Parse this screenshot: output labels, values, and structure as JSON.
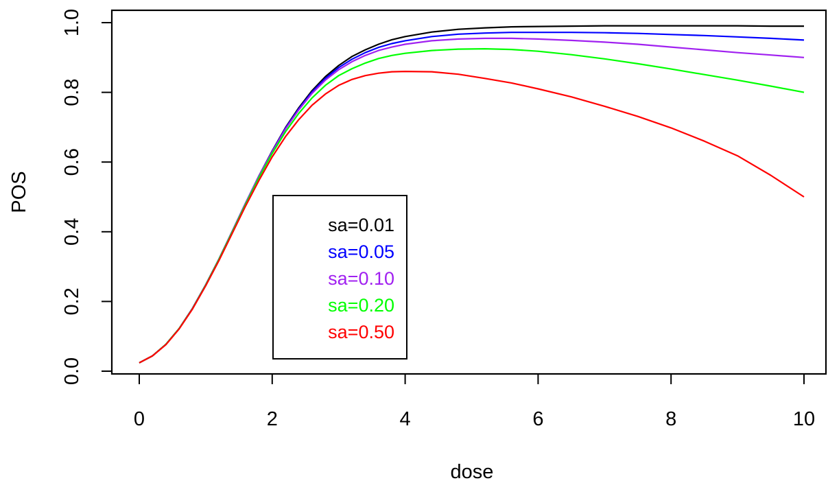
{
  "chart_data": {
    "type": "line",
    "title": "",
    "xlabel": "dose",
    "ylabel": "POS",
    "xlim": [
      0,
      10
    ],
    "ylim": [
      0,
      1
    ],
    "x_ticks": [
      "0",
      "2",
      "4",
      "6",
      "8",
      "10"
    ],
    "y_ticks": [
      "0.0",
      "0.2",
      "0.4",
      "0.6",
      "0.8",
      "1.0"
    ],
    "grid": false,
    "legend_position": "bottom-left",
    "x": [
      0,
      0.2,
      0.4,
      0.6,
      0.8,
      1.0,
      1.2,
      1.4,
      1.6,
      1.8,
      2.0,
      2.2,
      2.4,
      2.6,
      2.8,
      3.0,
      3.2,
      3.4,
      3.6,
      3.8,
      4.0,
      4.4,
      4.8,
      5.2,
      5.6,
      6.0,
      6.5,
      7.0,
      7.5,
      8.0,
      8.5,
      9.0,
      9.5,
      10.0
    ],
    "series": [
      {
        "name": "sa=0.01",
        "color": "#000000",
        "values": [
          0.024,
          0.044,
          0.077,
          0.122,
          0.18,
          0.248,
          0.322,
          0.402,
          0.482,
          0.56,
          0.632,
          0.699,
          0.756,
          0.805,
          0.845,
          0.877,
          0.903,
          0.922,
          0.938,
          0.951,
          0.96,
          0.973,
          0.981,
          0.985,
          0.988,
          0.989,
          0.99,
          0.991,
          0.991,
          0.991,
          0.991,
          0.991,
          0.99,
          0.99
        ]
      },
      {
        "name": "sa=0.05",
        "color": "#0000ff",
        "values": [
          0.024,
          0.044,
          0.077,
          0.122,
          0.18,
          0.248,
          0.322,
          0.402,
          0.482,
          0.559,
          0.631,
          0.697,
          0.753,
          0.801,
          0.84,
          0.871,
          0.895,
          0.914,
          0.929,
          0.94,
          0.948,
          0.96,
          0.967,
          0.97,
          0.972,
          0.972,
          0.972,
          0.971,
          0.969,
          0.966,
          0.963,
          0.959,
          0.955,
          0.95
        ]
      },
      {
        "name": "sa=0.10",
        "color": "#a020f0",
        "values": [
          0.024,
          0.044,
          0.077,
          0.122,
          0.18,
          0.248,
          0.322,
          0.402,
          0.482,
          0.559,
          0.63,
          0.695,
          0.75,
          0.797,
          0.835,
          0.865,
          0.888,
          0.906,
          0.92,
          0.93,
          0.938,
          0.948,
          0.953,
          0.955,
          0.955,
          0.953,
          0.949,
          0.944,
          0.938,
          0.93,
          0.922,
          0.914,
          0.907,
          0.9
        ]
      },
      {
        "name": "sa=0.20",
        "color": "#00ff00",
        "values": [
          0.024,
          0.044,
          0.077,
          0.122,
          0.179,
          0.247,
          0.321,
          0.4,
          0.479,
          0.555,
          0.625,
          0.687,
          0.74,
          0.784,
          0.82,
          0.848,
          0.868,
          0.884,
          0.897,
          0.906,
          0.912,
          0.92,
          0.924,
          0.925,
          0.923,
          0.918,
          0.908,
          0.896,
          0.882,
          0.867,
          0.851,
          0.835,
          0.818,
          0.8
        ]
      },
      {
        "name": "sa=0.50",
        "color": "#ff0000",
        "values": [
          0.024,
          0.044,
          0.076,
          0.121,
          0.178,
          0.245,
          0.318,
          0.396,
          0.474,
          0.547,
          0.615,
          0.673,
          0.722,
          0.763,
          0.795,
          0.82,
          0.837,
          0.848,
          0.855,
          0.859,
          0.86,
          0.859,
          0.852,
          0.84,
          0.827,
          0.81,
          0.787,
          0.76,
          0.731,
          0.698,
          0.66,
          0.618,
          0.562,
          0.5
        ]
      }
    ]
  }
}
